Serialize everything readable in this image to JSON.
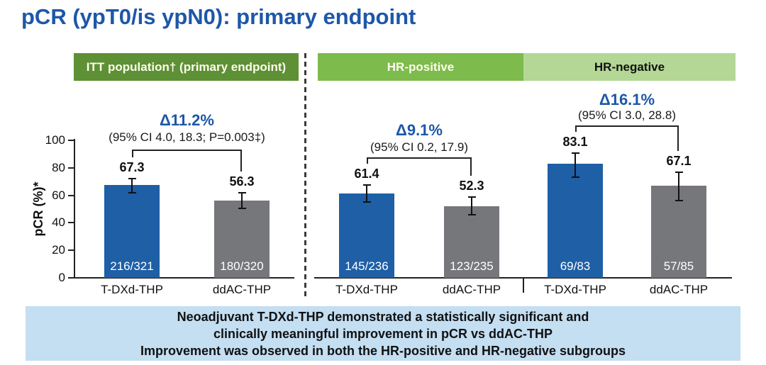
{
  "title": "pCR (ypT0/is ypN0): primary endpoint",
  "colors": {
    "title_blue": "#1d57a8",
    "delta_blue": "#1d57a8",
    "bar_tdxd": "#1e5fa6",
    "bar_ddac": "#76777b",
    "header_itt_bg": "#5e9035",
    "header_hrpos_bg": "#7dbb4c",
    "header_hrneg_bg": "#b4d795",
    "banner_bg": "#c4def2",
    "axis": "#222222",
    "error_bar": "#111111",
    "fraction_text": "#ffffff"
  },
  "chart_data": {
    "type": "bar",
    "ylabel": "pCR (%)*",
    "ylim": [
      0,
      100
    ],
    "yticks": [
      0,
      20,
      40,
      60,
      80,
      100
    ],
    "series": [
      "T-DXd-THP",
      "ddAC-THP"
    ],
    "series_colors": {
      "T-DXd-THP": "#1e5fa6",
      "ddAC-THP": "#76777b"
    },
    "legend": "none",
    "grid": false,
    "groups": [
      {
        "header": "ITT population† (primary endpoint)",
        "delta": "Δ11.2%",
        "ci": "(95% CI 4.0, 18.3; P=0.003‡)",
        "bars": [
          {
            "label": "T-DXd-THP",
            "value": 67.3,
            "fraction": "216/321",
            "ci_low": 61.9,
            "ci_high": 72.4
          },
          {
            "label": "ddAC-THP",
            "value": 56.3,
            "fraction": "180/320",
            "ci_low": 50.6,
            "ci_high": 61.8
          }
        ]
      },
      {
        "header": "HR-positive",
        "delta": "Δ9.1%",
        "ci": "(95% CI 0.2, 17.9)",
        "bars": [
          {
            "label": "T-DXd-THP",
            "value": 61.4,
            "fraction": "145/236",
            "ci_low": 54.9,
            "ci_high": 67.7
          },
          {
            "label": "ddAC-THP",
            "value": 52.3,
            "fraction": "123/235",
            "ci_low": 45.7,
            "ci_high": 58.9
          }
        ]
      },
      {
        "header": "HR-negative",
        "delta": "Δ16.1%",
        "ci": "(95% CI 3.0, 28.8)",
        "bars": [
          {
            "label": "T-DXd-THP",
            "value": 83.1,
            "fraction": "69/83",
            "ci_low": 73.3,
            "ci_high": 90.5
          },
          {
            "label": "ddAC-THP",
            "value": 67.1,
            "fraction": "57/85",
            "ci_low": 56.2,
            "ci_high": 76.7
          }
        ]
      }
    ]
  },
  "banner": {
    "lines": [
      "Neoadjuvant T-DXd-THP demonstrated a statistically significant and",
      "clinically meaningful improvement in pCR vs ddAC-THP",
      "Improvement was observed in both the HR-positive and HR-negative subgroups"
    ]
  }
}
